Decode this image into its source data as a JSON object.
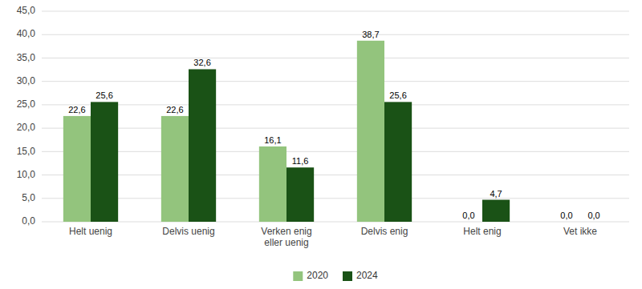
{
  "chart_data": {
    "type": "bar",
    "categories": [
      "Helt uenig",
      "Delvis uenig",
      "Verken enig\neller uenig",
      "Delvis enig",
      "Helt enig",
      "Vet ikke"
    ],
    "series": [
      {
        "name": "2020",
        "color": "#93c47d",
        "values": [
          22.6,
          22.6,
          16.1,
          38.7,
          0.0,
          0.0
        ],
        "value_labels": [
          "22,6",
          "22,6",
          "16,1",
          "38,7",
          "0,0",
          "0,0"
        ]
      },
      {
        "name": "2024",
        "color": "#1a5216",
        "values": [
          25.6,
          32.6,
          11.6,
          25.6,
          4.7,
          0.0
        ],
        "value_labels": [
          "25,6",
          "32,6",
          "11,6",
          "25,6",
          "4,7",
          "0,0"
        ]
      }
    ],
    "ylim": [
      0,
      45
    ],
    "yticks": [
      {
        "value": 0.0,
        "label": "0,0"
      },
      {
        "value": 5.0,
        "label": "5,0"
      },
      {
        "value": 10.0,
        "label": "10,0"
      },
      {
        "value": 15.0,
        "label": "15,0"
      },
      {
        "value": 20.0,
        "label": "20,0"
      },
      {
        "value": 25.0,
        "label": "25,0"
      },
      {
        "value": 30.0,
        "label": "30,0"
      },
      {
        "value": 35.0,
        "label": "35,0"
      },
      {
        "value": 40.0,
        "label": "40,0"
      },
      {
        "value": 45.0,
        "label": "45,0"
      }
    ],
    "grid": true,
    "legend": "bottom",
    "data_labels": true
  }
}
